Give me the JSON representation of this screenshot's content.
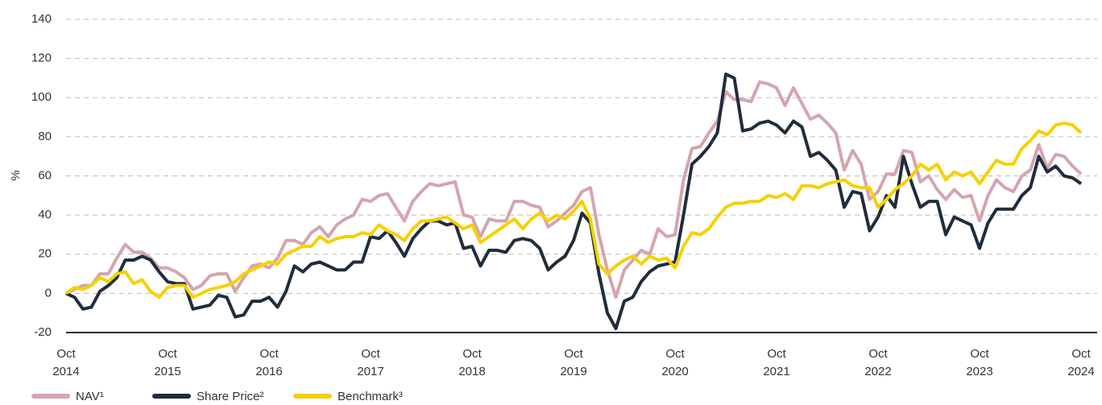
{
  "chart_data": {
    "type": "line",
    "ylabel": "%",
    "categories": [
      "Oct 2014",
      null,
      null,
      null,
      null,
      null,
      null,
      null,
      null,
      null,
      null,
      null,
      "Oct 2015",
      null,
      null,
      null,
      null,
      null,
      null,
      null,
      null,
      null,
      null,
      null,
      "Oct 2016",
      null,
      null,
      null,
      null,
      null,
      null,
      null,
      null,
      null,
      null,
      null,
      "Oct 2017",
      null,
      null,
      null,
      null,
      null,
      null,
      null,
      null,
      null,
      null,
      null,
      "Oct 2018",
      null,
      null,
      null,
      null,
      null,
      null,
      null,
      null,
      null,
      null,
      null,
      "Oct 2019",
      null,
      null,
      null,
      null,
      null,
      null,
      null,
      null,
      null,
      null,
      null,
      "Oct 2020",
      null,
      null,
      null,
      null,
      null,
      null,
      null,
      null,
      null,
      null,
      null,
      "Oct 2021",
      null,
      null,
      null,
      null,
      null,
      null,
      null,
      null,
      null,
      null,
      null,
      "Oct 2022",
      null,
      null,
      null,
      null,
      null,
      null,
      null,
      null,
      null,
      null,
      null,
      "Oct 2023",
      null,
      null,
      null,
      null,
      null,
      null,
      null,
      null,
      null,
      null,
      null,
      "Oct 2024"
    ],
    "series": [
      {
        "name": "NAV¹",
        "color": "#d4a5ad",
        "values": [
          0,
          2,
          4,
          4,
          10,
          10,
          18,
          25,
          21,
          21,
          18,
          13,
          13,
          11,
          8,
          2,
          4,
          9,
          10,
          10,
          1,
          8,
          14,
          15,
          13,
          18,
          27,
          27,
          25,
          31,
          34,
          29,
          35,
          38,
          40,
          48,
          47,
          50,
          51,
          44,
          37,
          47,
          52,
          56,
          55,
          56,
          57,
          40,
          39,
          29,
          38,
          37,
          37,
          47,
          47,
          45,
          44,
          34,
          37,
          41,
          45,
          52,
          54,
          30,
          12,
          -2,
          12,
          17,
          22,
          20,
          33,
          29,
          30,
          58,
          74,
          75,
          82,
          88,
          103,
          99,
          99,
          98,
          108,
          107,
          105,
          96,
          105,
          97,
          89,
          91,
          87,
          82,
          63,
          73,
          66,
          48,
          52,
          61,
          61,
          73,
          72,
          57,
          60,
          53,
          48,
          53,
          49,
          50,
          37,
          50,
          58,
          54,
          52,
          60,
          63,
          76,
          64,
          71,
          70,
          65,
          61
        ]
      },
      {
        "name": "Share Price²",
        "color": "#1f2d3d",
        "values": [
          0,
          -2,
          -8,
          -7,
          1,
          4,
          8,
          17,
          17,
          19,
          17,
          11,
          6,
          5,
          5,
          -8,
          -7,
          -6,
          -1,
          -2,
          -12,
          -11,
          -4,
          -4,
          -2,
          -7,
          1,
          14,
          11,
          15,
          16,
          14,
          12,
          12,
          16,
          16,
          29,
          28,
          32,
          26,
          19,
          28,
          33,
          37,
          37,
          35,
          36,
          23,
          24,
          14,
          22,
          22,
          21,
          27,
          28,
          27,
          23,
          12,
          16,
          19,
          27,
          41,
          36,
          10,
          -10,
          -18,
          -4,
          -2,
          6,
          11,
          14,
          15,
          16,
          40,
          66,
          70,
          75,
          82,
          112,
          110,
          83,
          84,
          87,
          88,
          86,
          82,
          88,
          85,
          70,
          72,
          68,
          63,
          44,
          52,
          51,
          32,
          39,
          50,
          44,
          70,
          56,
          44,
          47,
          47,
          30,
          39,
          37,
          35,
          23,
          36,
          43,
          43,
          43,
          50,
          54,
          70,
          62,
          65,
          60,
          59,
          56
        ]
      },
      {
        "name": "Benchmark³",
        "color": "#f7d000",
        "values": [
          0,
          3,
          2,
          4,
          8,
          6,
          10,
          11,
          5,
          7,
          1,
          -2,
          3,
          4,
          4,
          -2,
          0,
          2,
          3,
          4,
          6,
          10,
          12,
          14,
          16,
          15,
          20,
          22,
          24,
          24,
          29,
          26,
          28,
          29,
          29,
          31,
          30,
          35,
          32,
          30,
          27,
          33,
          37,
          37,
          38,
          39,
          36,
          33,
          35,
          26,
          29,
          32,
          35,
          38,
          33,
          38,
          41,
          37,
          40,
          38,
          42,
          47,
          38,
          15,
          10,
          14,
          17,
          19,
          15,
          19,
          17,
          18,
          13,
          24,
          31,
          30,
          33,
          39,
          44,
          46,
          46,
          47,
          47,
          50,
          49,
          51,
          48,
          55,
          55,
          54,
          56,
          57,
          58,
          55,
          54,
          54,
          44,
          48,
          53,
          56,
          60,
          66,
          63,
          66,
          58,
          62,
          60,
          62,
          56,
          62,
          68,
          66,
          66,
          74,
          78,
          83,
          81,
          86,
          87,
          86,
          82
        ]
      }
    ],
    "ylim": [
      -20,
      140
    ],
    "yticks": [
      -20,
      0,
      20,
      40,
      60,
      80,
      100,
      120,
      140
    ],
    "grid": true,
    "legend": "bottom-left"
  }
}
